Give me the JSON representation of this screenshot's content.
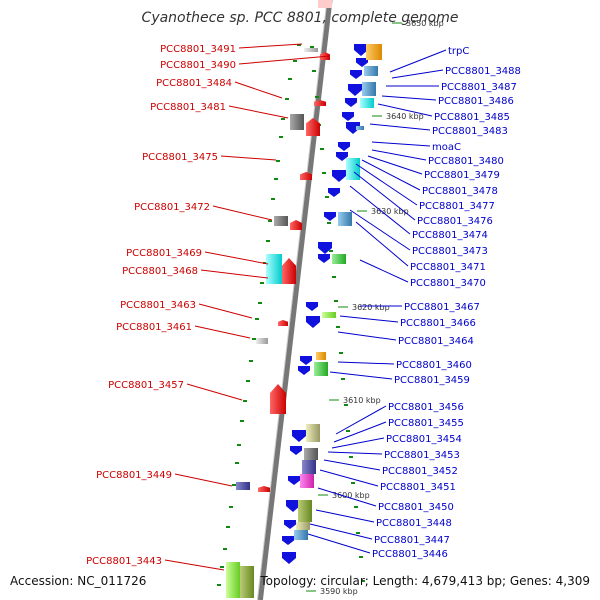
{
  "title": "Cyanothece sp. PCC 8801, complete genome",
  "footer": {
    "accession": "Accession: NC_011726",
    "summary": "Topology: circular; Length: 4,679,413 bp; Genes: 4,309"
  },
  "colors": {
    "left_label": "#cc0000",
    "right_label": "#0000cc",
    "backbone": "#777777",
    "forward_arrow": "#ee1111",
    "reverse_arrow": "#1111dd",
    "tick_mark": "#118811"
  },
  "scale_ticks": [
    "3650 kbp",
    "3640 kbp",
    "3630 kbp",
    "3620 kbp",
    "3610 kbp",
    "3600 kbp",
    "3590 kbp"
  ],
  "left_labels": [
    "PCC8801_3491",
    "PCC8801_3490",
    "PCC8801_3484",
    "PCC8801_3481",
    "PCC8801_3475",
    "PCC8801_3472",
    "PCC8801_3469",
    "PCC8801_3468",
    "PCC8801_3463",
    "PCC8801_3461",
    "PCC8801_3457",
    "PCC8801_3449",
    "PCC8801_3443"
  ],
  "right_labels": [
    "trpC",
    "PCC8801_3488",
    "PCC8801_3487",
    "PCC8801_3486",
    "PCC8801_3485",
    "PCC8801_3483",
    "moaC",
    "PCC8801_3480",
    "PCC8801_3479",
    "PCC8801_3478",
    "PCC8801_3477",
    "PCC8801_3476",
    "PCC8801_3474",
    "PCC8801_3473",
    "PCC8801_3471",
    "PCC8801_3470",
    "PCC8801_3467",
    "PCC8801_3466",
    "PCC8801_3464",
    "PCC8801_3460",
    "PCC8801_3459",
    "PCC8801_3456",
    "PCC8801_3455",
    "PCC8801_3454",
    "PCC8801_3453",
    "PCC8801_3452",
    "PCC8801_3451",
    "PCC8801_3450",
    "PCC8801_3448",
    "PCC8801_3447",
    "PCC8801_3446"
  ]
}
